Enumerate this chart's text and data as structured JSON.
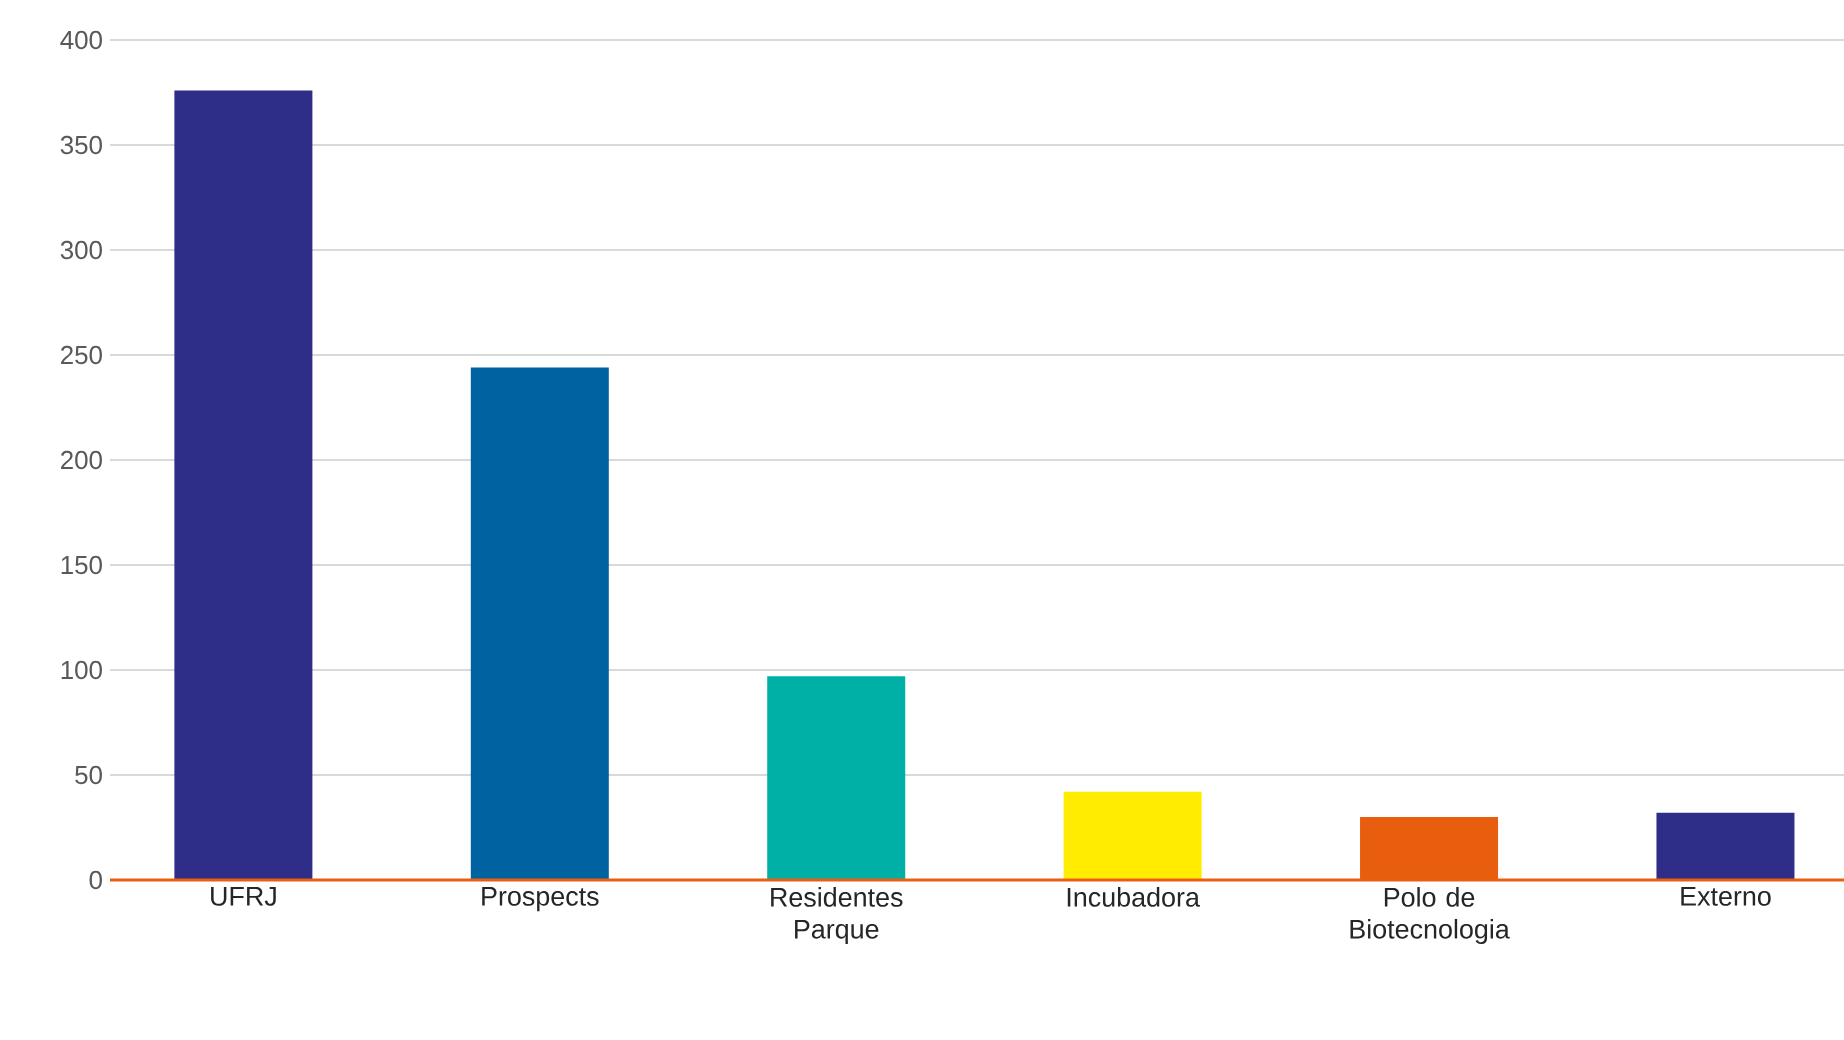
{
  "chart_data": {
    "type": "bar",
    "categories": [
      "UFRJ",
      "Prospects",
      "Residentes Parque",
      "Incubadora",
      "Polo de Biotecnologia",
      "Externo"
    ],
    "values": [
      376,
      244,
      97,
      42,
      30,
      32
    ],
    "colors": [
      "#2e2d87",
      "#0062a0",
      "#00b0a6",
      "#ffec00",
      "#e85d0e",
      "#2e2d87"
    ],
    "ylim": [
      0,
      400
    ],
    "yticks": [
      0,
      50,
      100,
      150,
      200,
      250,
      300,
      350,
      400
    ],
    "grid": "y"
  }
}
